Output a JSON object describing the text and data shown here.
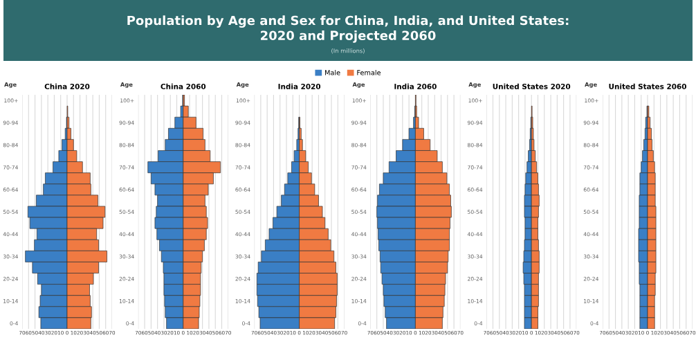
{
  "chart_data": [
    {
      "type": "bar",
      "orientation": "horizontal",
      "stacked": true,
      "title": "China 2020",
      "ylabel": "Age",
      "legend": "top",
      "grid": "x",
      "annotations": [
        "Population by Age and Sex for China, India, and United States:\n2020 and Projected 2060",
        "(In millions)"
      ],
      "categories": [
        "100+",
        null,
        "90-94",
        null,
        "80-84",
        null,
        "70-74",
        null,
        "60-64",
        null,
        "50-54",
        null,
        "40-44",
        null,
        "30-34",
        null,
        "20-24",
        null,
        "10-14",
        null,
        "0-4"
      ],
      "xlim": [
        -70,
        70
      ],
      "xticks": [
        {
          "value": -70,
          "label": "70"
        },
        {
          "value": -60,
          "label": "60"
        },
        {
          "value": -50,
          "label": "50"
        },
        {
          "value": -40,
          "label": "40"
        },
        {
          "value": -30,
          "label": "30"
        },
        {
          "value": -20,
          "label": "20"
        },
        {
          "value": -10,
          "label": "10"
        },
        0,
        10,
        20,
        30,
        40,
        50,
        60,
        70
      ],
      "series": [
        {
          "name": "Male",
          "color": "#3a7fc5",
          "values": [
            0,
            0,
            -1,
            -3,
            -8,
            -13,
            -22,
            -34,
            -37,
            -48,
            -61,
            -58,
            -47,
            -51,
            -65,
            -54,
            -46,
            -40,
            -42,
            -44,
            -41
          ]
        },
        {
          "name": "Female",
          "color": "#f07a42",
          "values": [
            0,
            1,
            3,
            6,
            10,
            15,
            24,
            36,
            37,
            48,
            59,
            56,
            46,
            49,
            62,
            49,
            41,
            35,
            36,
            38,
            37
          ]
        }
      ]
    },
    {
      "type": "bar",
      "orientation": "horizontal",
      "stacked": true,
      "title": "China 2060",
      "ylabel": "Age",
      "grid": "x",
      "categories": [
        "100+",
        null,
        "90-94",
        null,
        "80-84",
        null,
        "70-74",
        null,
        "60-64",
        null,
        "50-54",
        null,
        "40-44",
        null,
        "30-34",
        null,
        "20-24",
        null,
        "10-14",
        null,
        "0-4"
      ],
      "xlim": [
        -70,
        70
      ],
      "xticks": [
        {
          "value": -70,
          "label": "70"
        },
        {
          "value": -60,
          "label": "60"
        },
        {
          "value": -50,
          "label": "50"
        },
        {
          "value": -40,
          "label": "40"
        },
        {
          "value": -30,
          "label": "30"
        },
        {
          "value": -20,
          "label": "20"
        },
        {
          "value": -10,
          "label": "10"
        },
        0,
        10,
        20,
        30,
        40,
        50,
        60,
        70
      ],
      "series": [
        {
          "color": "#3a7fc5",
          "values": [
            -1,
            -4,
            -13,
            -23,
            -28,
            -39,
            -55,
            -50,
            -44,
            -40,
            -42,
            -44,
            -41,
            -37,
            -34,
            -31,
            -30,
            -30,
            -29,
            -28,
            -26
          ]
        },
        {
          "color": "#f07a42",
          "values": [
            2,
            8,
            20,
            31,
            34,
            42,
            58,
            47,
            39,
            34,
            36,
            38,
            36,
            33,
            30,
            28,
            27,
            27,
            26,
            25,
            24
          ]
        }
      ]
    },
    {
      "type": "bar",
      "orientation": "horizontal",
      "stacked": true,
      "title": "India 2020",
      "ylabel": "Age",
      "grid": "x",
      "categories": [
        "100+",
        null,
        "90-94",
        null,
        "80-84",
        null,
        "70-74",
        null,
        "60-64",
        null,
        "50-54",
        null,
        "40-44",
        null,
        "30-34",
        null,
        "20-24",
        null,
        "10-14",
        null,
        "0-4"
      ],
      "xlim": [
        -70,
        70
      ],
      "xticks": [
        {
          "value": -70,
          "label": "70"
        },
        {
          "value": -60,
          "label": "60"
        },
        {
          "value": -50,
          "label": "50"
        },
        {
          "value": -40,
          "label": "40"
        },
        {
          "value": -30,
          "label": "30"
        },
        {
          "value": -20,
          "label": "20"
        },
        {
          "value": -10,
          "label": "10"
        },
        0,
        10,
        20,
        30,
        40,
        50,
        60,
        70
      ],
      "series": [
        {
          "color": "#3a7fc5",
          "values": [
            0,
            0,
            -1,
            -2,
            -4,
            -8,
            -12,
            -18,
            -23,
            -28,
            -35,
            -41,
            -47,
            -53,
            -59,
            -64,
            -66,
            -66,
            -65,
            -63,
            -61
          ]
        },
        {
          "color": "#f07a42",
          "values": [
            0,
            0,
            1,
            3,
            5,
            10,
            14,
            19,
            24,
            30,
            36,
            40,
            45,
            49,
            54,
            57,
            59,
            59,
            58,
            57,
            55
          ]
        }
      ]
    },
    {
      "type": "bar",
      "orientation": "horizontal",
      "stacked": true,
      "title": "India 2060",
      "ylabel": "Age",
      "grid": "x",
      "categories": [
        "100+",
        null,
        "90-94",
        null,
        "80-84",
        null,
        "70-74",
        null,
        "60-64",
        null,
        "50-54",
        null,
        "40-44",
        null,
        "30-34",
        null,
        "20-24",
        null,
        "10-14",
        null,
        "0-4"
      ],
      "xlim": [
        -70,
        70
      ],
      "xticks": [
        {
          "value": -70,
          "label": "70"
        },
        {
          "value": -60,
          "label": "60"
        },
        {
          "value": -50,
          "label": "50"
        },
        {
          "value": -40,
          "label": "40"
        },
        {
          "value": -30,
          "label": "30"
        },
        {
          "value": -20,
          "label": "20"
        },
        {
          "value": -10,
          "label": "10"
        },
        0,
        10,
        20,
        30,
        40,
        50,
        60,
        70
      ],
      "series": [
        {
          "color": "#3a7fc5",
          "values": [
            0,
            -1,
            -3,
            -10,
            -20,
            -30,
            -41,
            -50,
            -56,
            -59,
            -60,
            -59,
            -58,
            -57,
            -55,
            -54,
            -52,
            -50,
            -49,
            -47,
            -45
          ]
        },
        {
          "color": "#f07a42",
          "values": [
            1,
            2,
            5,
            13,
            23,
            34,
            42,
            49,
            53,
            55,
            56,
            54,
            53,
            53,
            51,
            50,
            47,
            46,
            45,
            43,
            42
          ]
        }
      ]
    },
    {
      "type": "bar",
      "orientation": "horizontal",
      "stacked": true,
      "title": "United States 2020",
      "ylabel": "Age",
      "grid": "x",
      "categories": [
        "100+",
        null,
        "90-94",
        null,
        "80-84",
        null,
        "70-74",
        null,
        "60-64",
        null,
        "50-54",
        null,
        "40-44",
        null,
        "30-34",
        null,
        "20-24",
        null,
        "10-14",
        null,
        "0-4"
      ],
      "xlim": [
        -70,
        70
      ],
      "xticks": [
        {
          "value": -70,
          "label": "70"
        },
        {
          "value": -60,
          "label": "60"
        },
        {
          "value": -50,
          "label": "50"
        },
        {
          "value": -40,
          "label": "40"
        },
        {
          "value": -30,
          "label": "30"
        },
        {
          "value": -20,
          "label": "20"
        },
        {
          "value": -10,
          "label": "10"
        },
        0,
        10,
        20,
        30,
        40,
        50,
        60,
        70
      ],
      "series": [
        {
          "color": "#3a7fc5",
          "values": [
            0,
            0,
            -1,
            -2,
            -3,
            -5,
            -7,
            -9,
            -10,
            -11,
            -11,
            -10,
            -10,
            -11,
            -12,
            -13,
            -12,
            -11,
            -11,
            -11,
            -11
          ]
        },
        {
          "color": "#f07a42",
          "values": [
            0,
            1,
            2,
            3,
            4,
            6,
            8,
            10,
            11,
            12,
            11,
            10,
            10,
            11,
            12,
            12,
            11,
            11,
            11,
            10,
            10
          ]
        }
      ]
    },
    {
      "type": "bar",
      "orientation": "horizontal",
      "stacked": true,
      "title": "United States 2060",
      "ylabel": "Age",
      "grid": "x",
      "categories": [
        "100+",
        null,
        "90-94",
        null,
        "80-84",
        null,
        "70-74",
        null,
        "60-64",
        null,
        "50-54",
        null,
        "40-44",
        null,
        "30-34",
        null,
        "20-24",
        null,
        "10-14",
        null,
        "0-4"
      ],
      "xlim": [
        -70,
        70
      ],
      "xticks": [
        {
          "value": -70,
          "label": "70"
        },
        {
          "value": -60,
          "label": "60"
        },
        {
          "value": -50,
          "label": "50"
        },
        {
          "value": -40,
          "label": "40"
        },
        {
          "value": -30,
          "label": "30"
        },
        {
          "value": -20,
          "label": "20"
        },
        {
          "value": -10,
          "label": "10"
        },
        0,
        10,
        20,
        30,
        40,
        50,
        60,
        70
      ],
      "series": [
        {
          "color": "#3a7fc5",
          "values": [
            0,
            -1,
            -3,
            -4,
            -6,
            -8,
            -10,
            -12,
            -12,
            -13,
            -13,
            -13,
            -14,
            -14,
            -14,
            -13,
            -13,
            -12,
            -12,
            -12,
            -12
          ]
        },
        {
          "color": "#f07a42",
          "values": [
            0,
            2,
            4,
            6,
            7,
            9,
            11,
            12,
            12,
            12,
            13,
            13,
            13,
            13,
            13,
            13,
            12,
            12,
            11,
            11,
            11
          ]
        }
      ]
    }
  ]
}
